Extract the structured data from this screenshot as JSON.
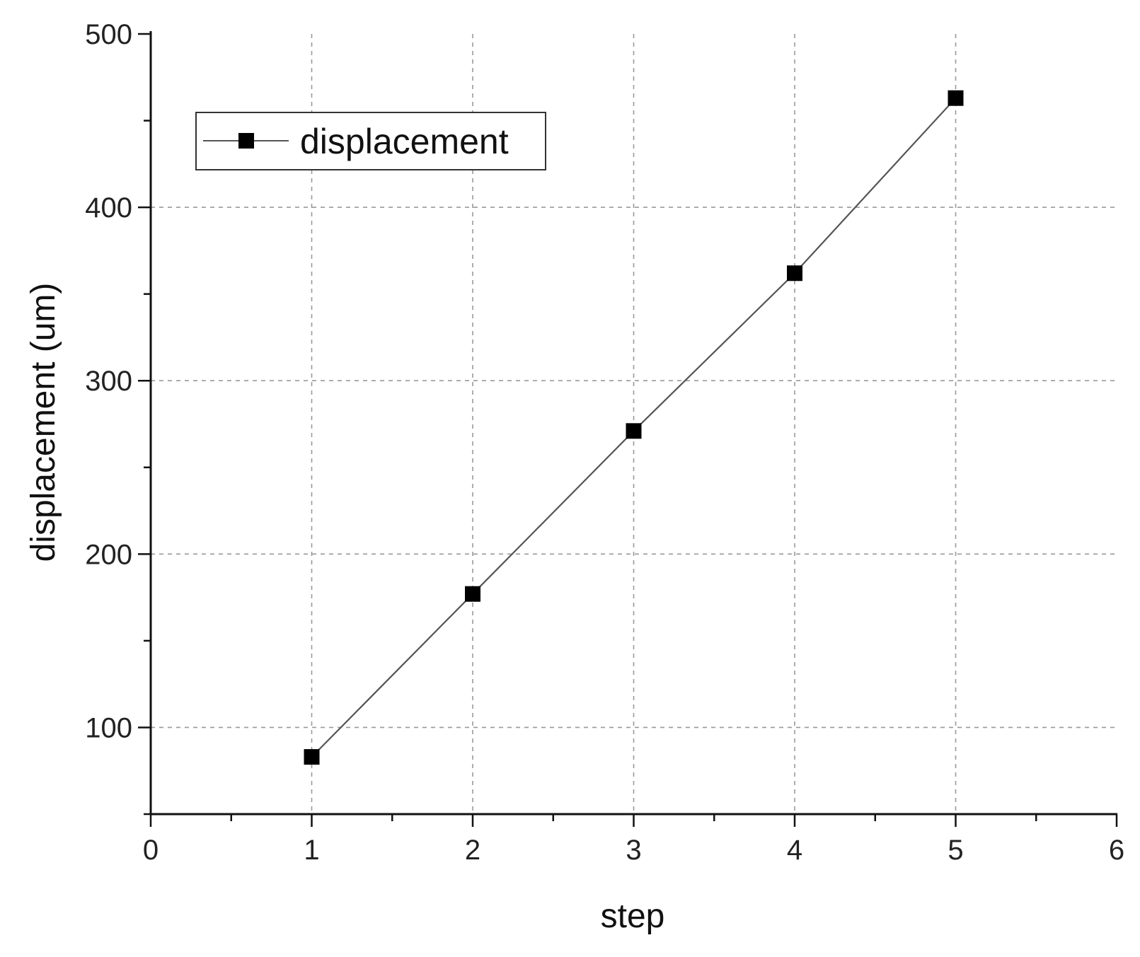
{
  "chart_data": {
    "type": "line",
    "title": "",
    "xlabel": "step",
    "ylabel": "displacement (um)",
    "xlim": [
      0,
      6
    ],
    "ylim": [
      50,
      500
    ],
    "x_ticks": [
      0,
      1,
      2,
      3,
      4,
      5,
      6
    ],
    "y_ticks": [
      100,
      200,
      300,
      400,
      500
    ],
    "x_tick_labels": [
      "0",
      "1",
      "2",
      "3",
      "4",
      "5",
      "6"
    ],
    "y_tick_labels": [
      "100",
      "200",
      "300",
      "400",
      "500"
    ],
    "grid": true,
    "legend_position": "top-left",
    "series": [
      {
        "name": "displacement",
        "marker": "square",
        "color": "#000000",
        "line_color": "#555555",
        "x": [
          1,
          2,
          3,
          4,
          5
        ],
        "y": [
          83,
          177,
          271,
          362,
          463
        ]
      }
    ]
  }
}
